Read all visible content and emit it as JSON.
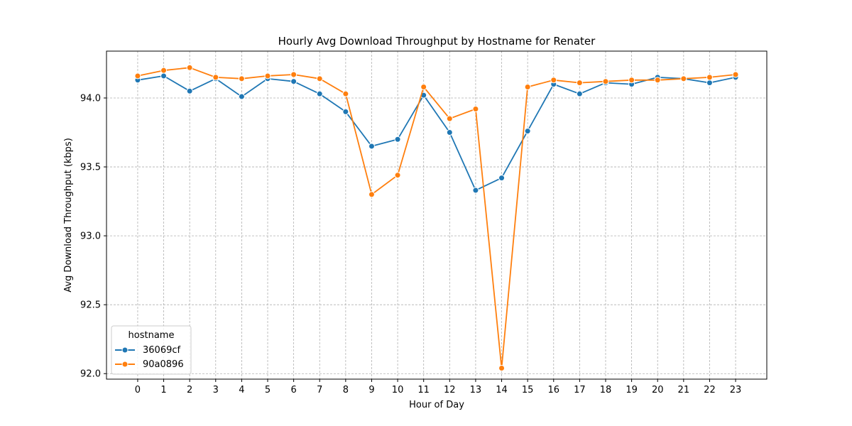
{
  "chart_data": {
    "type": "line",
    "title": "Hourly Avg Download Throughput by Hostname for Renater",
    "xlabel": "Hour of Day",
    "ylabel": "Avg Download Throughput (kbps)",
    "x": [
      0,
      1,
      2,
      3,
      4,
      5,
      6,
      7,
      8,
      9,
      10,
      11,
      12,
      13,
      14,
      15,
      16,
      17,
      18,
      19,
      20,
      21,
      22,
      23
    ],
    "x_ticks": [
      "0",
      "1",
      "2",
      "3",
      "4",
      "5",
      "6",
      "7",
      "8",
      "9",
      "10",
      "11",
      "12",
      "13",
      "14",
      "15",
      "16",
      "17",
      "18",
      "19",
      "20",
      "21",
      "22",
      "23"
    ],
    "y_ticks": [
      "92.0",
      "92.5",
      "93.0",
      "93.5",
      "94.0"
    ],
    "xlim": [
      -1.2,
      24.2
    ],
    "ylim": [
      91.96,
      94.34
    ],
    "grid": true,
    "legend": {
      "title": "hostname",
      "placement": "lower-left"
    },
    "series": [
      {
        "name": "36069cf",
        "color": "#1f77b4",
        "values": [
          94.13,
          94.16,
          94.05,
          94.14,
          94.01,
          94.14,
          94.12,
          94.03,
          93.9,
          93.65,
          93.7,
          94.02,
          93.75,
          93.33,
          93.42,
          93.76,
          94.1,
          94.03,
          94.11,
          94.1,
          94.15,
          94.14,
          94.11,
          94.15
        ]
      },
      {
        "name": "90a0896",
        "color": "#ff7f0e",
        "values": [
          94.16,
          94.2,
          94.22,
          94.15,
          94.14,
          94.16,
          94.17,
          94.14,
          94.03,
          93.3,
          93.44,
          94.08,
          93.85,
          93.92,
          92.04,
          94.08,
          94.13,
          94.11,
          94.12,
          94.13,
          94.13,
          94.14,
          94.15,
          94.17
        ]
      }
    ]
  }
}
